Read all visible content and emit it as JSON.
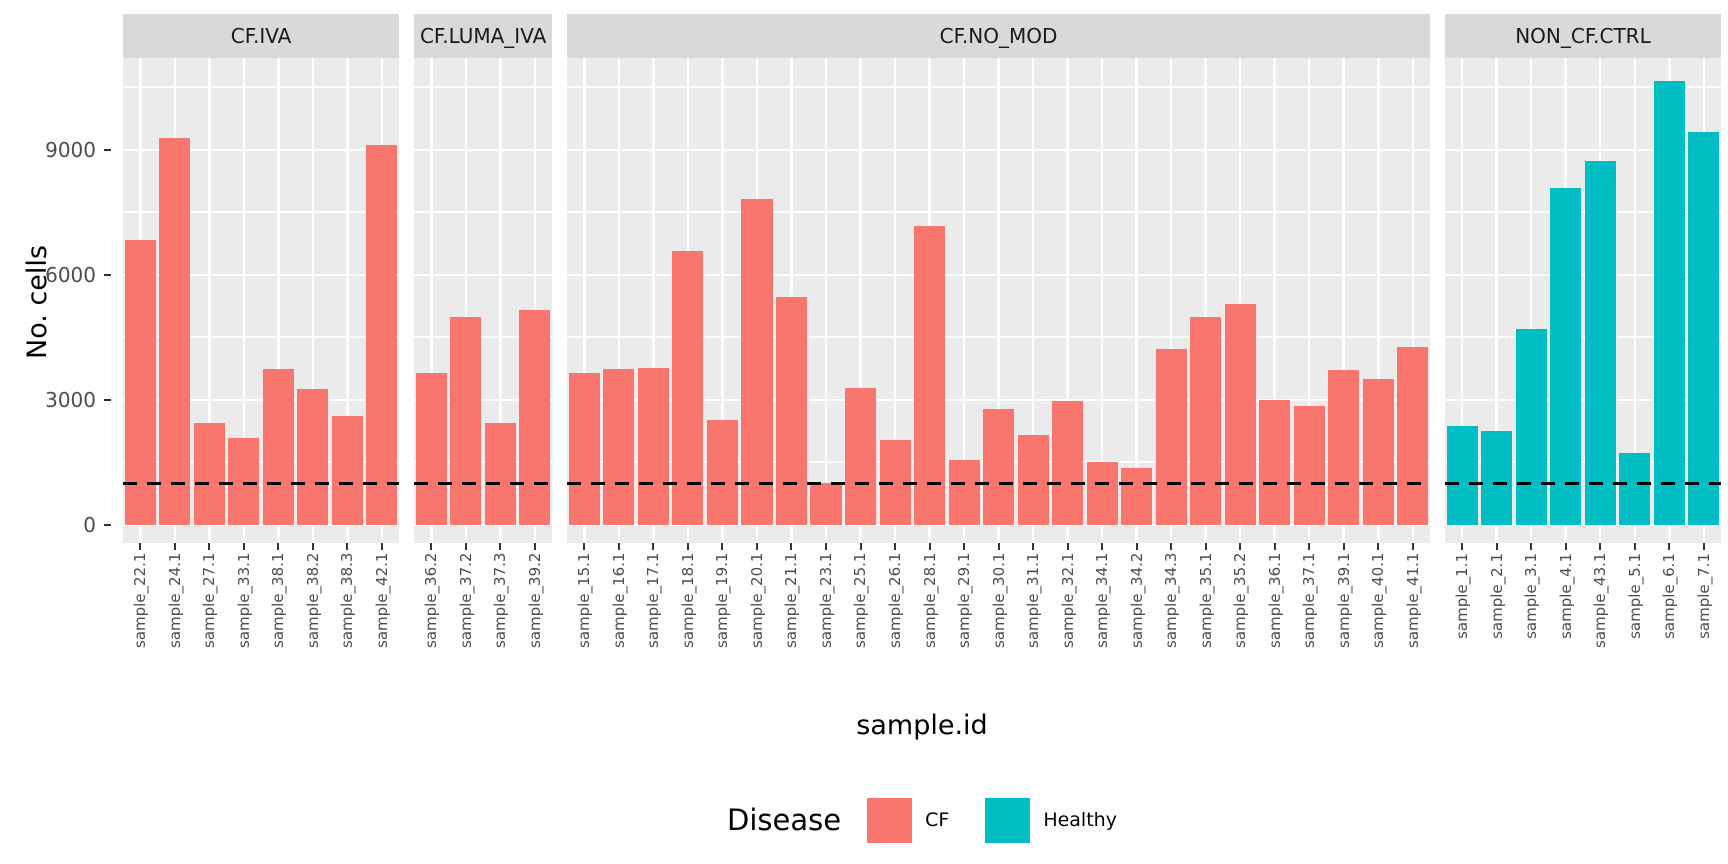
{
  "chart_data": {
    "type": "bar",
    "title": "",
    "xlabel": "sample.id",
    "ylabel": "No. cells",
    "yticks": [
      0,
      3000,
      6000,
      9000
    ],
    "ylim": [
      0,
      11208
    ],
    "grid": true,
    "legend_position": "bottom",
    "legend": {
      "title": "Disease",
      "entries": [
        {
          "label": "CF",
          "color": "#F8766D"
        },
        {
          "label": "Healthy",
          "color": "#00BFC4"
        }
      ]
    },
    "hline": {
      "value": 1000,
      "style": "dashed",
      "color": "#000000"
    },
    "panel_bg": "#EBEBEB",
    "strip_bg": "#D9D9D9",
    "facets": [
      {
        "label": "CF.IVA",
        "disease": "CF",
        "categories": [
          "sample_22.1",
          "sample_24.1",
          "sample_27.1",
          "sample_33.1",
          "sample_38.1",
          "sample_38.2",
          "sample_38.3",
          "sample_42.1"
        ],
        "values": [
          6850,
          9280,
          2450,
          2100,
          3740,
          3260,
          2620,
          9120
        ]
      },
      {
        "label": "CF.LUMA_IVA",
        "disease": "CF",
        "categories": [
          "sample_36.2",
          "sample_37.2",
          "sample_37.3",
          "sample_39.2"
        ],
        "values": [
          3650,
          4990,
          2460,
          5150
        ]
      },
      {
        "label": "CF.NO_MOD",
        "disease": "CF",
        "categories": [
          "sample_15.1",
          "sample_16.1",
          "sample_17.1",
          "sample_18.1",
          "sample_19.1",
          "sample_20.1",
          "sample_21.1",
          "sample_23.1",
          "sample_25.1",
          "sample_26.1",
          "sample_28.1",
          "sample_29.1",
          "sample_30.1",
          "sample_31.1",
          "sample_32.1",
          "sample_34.1",
          "sample_34.2",
          "sample_34.3",
          "sample_35.1",
          "sample_35.2",
          "sample_36.1",
          "sample_37.1",
          "sample_39.1",
          "sample_40.1",
          "sample_41.1"
        ],
        "values": [
          3650,
          3740,
          3770,
          6580,
          2520,
          7820,
          5470,
          1010,
          3290,
          2040,
          7180,
          1560,
          2780,
          2160,
          2980,
          1510,
          1370,
          4220,
          4990,
          5300,
          3000,
          2860,
          3720,
          3500,
          4270
        ]
      },
      {
        "label": "NON_CF.CTRL",
        "disease": "Healthy",
        "categories": [
          "sample_1.1",
          "sample_2.1",
          "sample_3.1",
          "sample_4.1",
          "sample_43.1",
          "sample_5.1",
          "sample_6.1",
          "sample_7.1"
        ],
        "values": [
          2380,
          2260,
          4700,
          8090,
          8740,
          1730,
          10660,
          9430
        ]
      }
    ]
  }
}
